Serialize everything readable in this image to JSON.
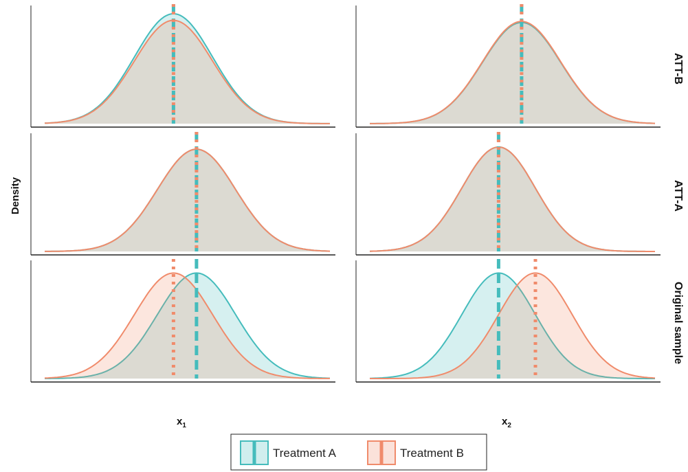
{
  "colors": {
    "treatment_a": "#45bcbc",
    "treatment_b": "#f08b6b"
  },
  "chart_data": {
    "type": "area",
    "subtype": "faceted density plot",
    "ylabel": "Density",
    "col_labels": [
      "x",
      "x"
    ],
    "col_subscripts": [
      "1",
      "2"
    ],
    "row_labels": [
      "ATT-B",
      "ATT-A",
      "Original sample"
    ],
    "legend": {
      "placement": "bottom",
      "entries": [
        "Treatment A",
        "Treatment B"
      ]
    },
    "mean_lines": {
      "treatment_a": "dashed",
      "treatment_b": "dotted"
    },
    "panels": [
      {
        "row": "ATT-B",
        "col": 1,
        "ylim": [
          0,
          1.05
        ],
        "series": [
          {
            "name": "Treatment A",
            "mean": 0.0,
            "sd": 0.85,
            "peak": 1.0
          },
          {
            "name": "Treatment B",
            "mean": 0.0,
            "sd": 0.85,
            "peak": 0.94
          }
        ]
      },
      {
        "row": "ATT-B",
        "col": 2,
        "ylim": [
          0,
          1.05
        ],
        "series": [
          {
            "name": "Treatment A",
            "mean": 0.5,
            "sd": 0.85,
            "peak": 0.92
          },
          {
            "name": "Treatment B",
            "mean": 0.5,
            "sd": 0.85,
            "peak": 0.93
          }
        ]
      },
      {
        "row": "ATT-A",
        "col": 1,
        "ylim": [
          0,
          1.05
        ],
        "series": [
          {
            "name": "Treatment A",
            "mean": 0.5,
            "sd": 0.85,
            "peak": 0.93
          },
          {
            "name": "Treatment B",
            "mean": 0.5,
            "sd": 0.85,
            "peak": 0.93
          }
        ]
      },
      {
        "row": "ATT-A",
        "col": 2,
        "ylim": [
          0,
          1.05
        ],
        "series": [
          {
            "name": "Treatment A",
            "mean": 0.0,
            "sd": 0.8,
            "peak": 0.95
          },
          {
            "name": "Treatment B",
            "mean": 0.0,
            "sd": 0.8,
            "peak": 0.95
          }
        ]
      },
      {
        "row": "Original sample",
        "col": 1,
        "ylim": [
          0,
          1.05
        ],
        "series": [
          {
            "name": "Treatment A",
            "mean": 0.5,
            "sd": 0.85,
            "peak": 0.96
          },
          {
            "name": "Treatment B",
            "mean": 0.0,
            "sd": 0.85,
            "peak": 0.96
          }
        ]
      },
      {
        "row": "Original sample",
        "col": 2,
        "ylim": [
          0,
          1.05
        ],
        "series": [
          {
            "name": "Treatment A",
            "mean": 0.0,
            "sd": 0.8,
            "peak": 0.96
          },
          {
            "name": "Treatment B",
            "mean": 0.8,
            "sd": 0.8,
            "peak": 0.96
          }
        ]
      }
    ],
    "x_domain": [
      -2.8,
      3.4
    ]
  }
}
